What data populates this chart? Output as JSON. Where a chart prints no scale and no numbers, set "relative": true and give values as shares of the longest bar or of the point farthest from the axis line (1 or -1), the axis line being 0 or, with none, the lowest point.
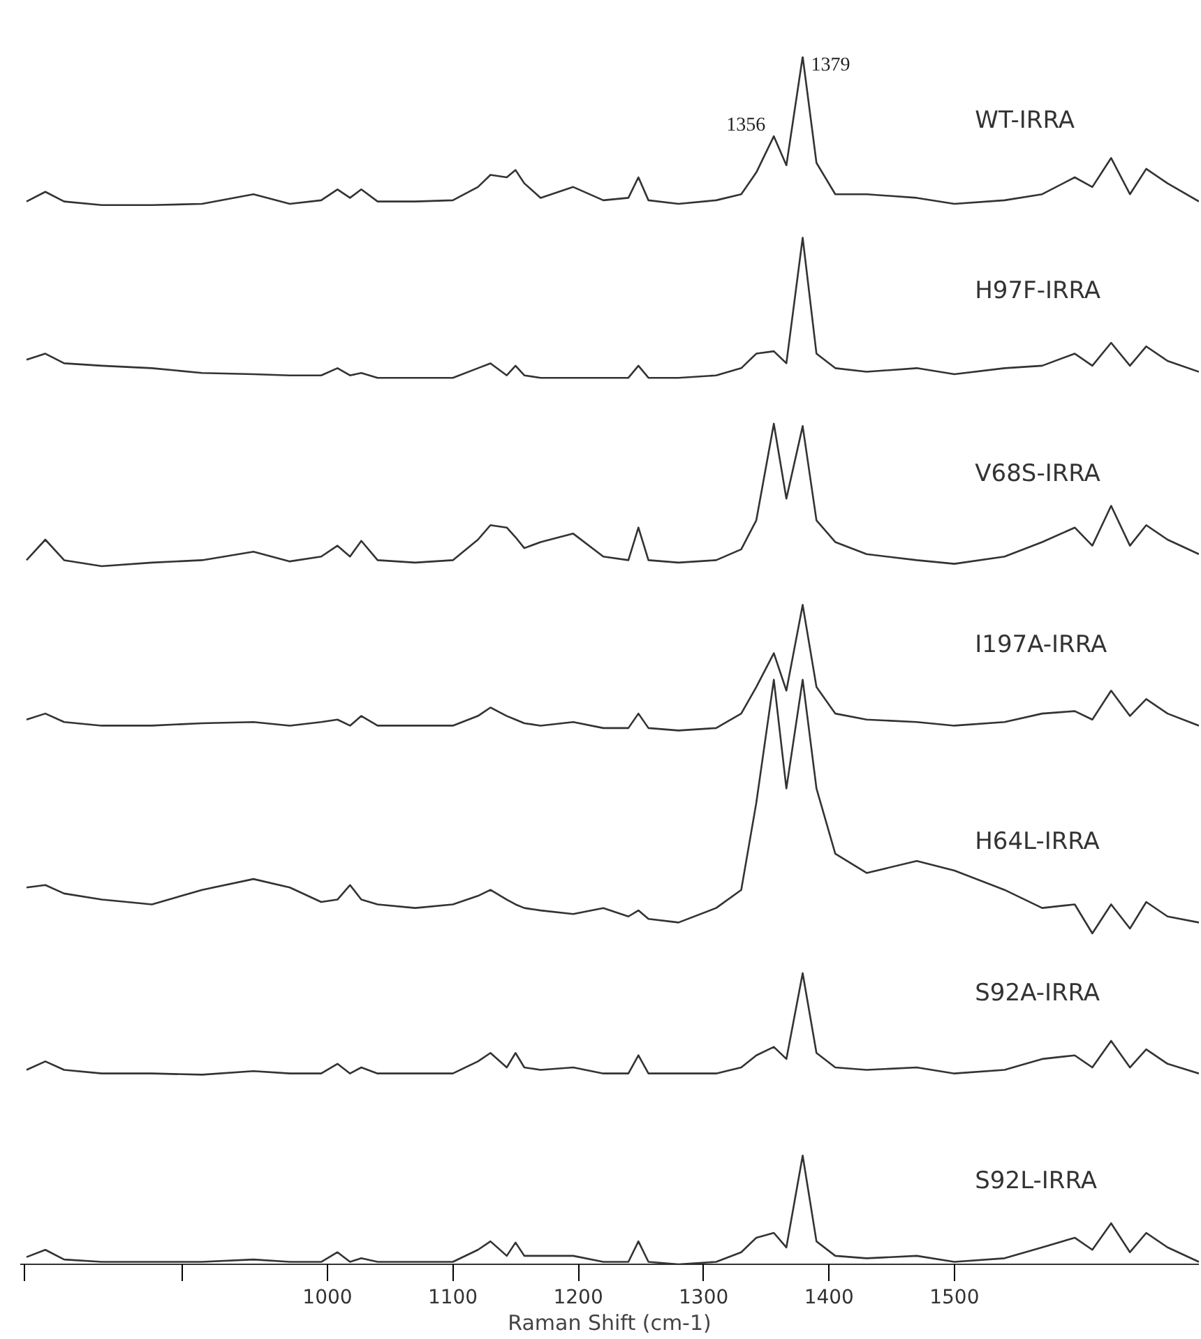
{
  "chart_data": {
    "type": "line",
    "relative": true,
    "xlabel": "Raman Shift (cm-1)",
    "xlim": [
      755,
      1695
    ],
    "xticks": [
      {
        "value": 758,
        "label": null
      },
      {
        "value": 884,
        "label": null
      },
      1000,
      1100,
      1200,
      1300,
      1400,
      1500
    ],
    "grid": false,
    "legend": false,
    "marker": "none",
    "line_style": "solid",
    "x": [
      760,
      775,
      790,
      820,
      860,
      900,
      941,
      970,
      995,
      1008,
      1018,
      1027,
      1040,
      1070,
      1100,
      1120,
      1130,
      1143,
      1150,
      1157,
      1170,
      1196,
      1220,
      1240,
      1248,
      1256,
      1280,
      1310,
      1330,
      1342,
      1356,
      1366,
      1379,
      1390,
      1405,
      1430,
      1470,
      1500,
      1540,
      1570,
      1596,
      1610,
      1625,
      1640,
      1653,
      1670,
      1695
    ],
    "series": [
      {
        "name": "WT-IRRA",
        "color": "#333333",
        "values": [
          0.88,
          0.888,
          0.88,
          0.877,
          0.877,
          0.878,
          0.886,
          0.878,
          0.881,
          0.89,
          0.883,
          0.89,
          0.88,
          0.88,
          0.881,
          0.892,
          0.902,
          0.9,
          0.906,
          0.895,
          0.883,
          0.892,
          0.881,
          0.883,
          0.9,
          0.881,
          0.878,
          0.881,
          0.886,
          0.904,
          0.934,
          0.91,
          1.0,
          0.912,
          0.886,
          0.886,
          0.883,
          0.878,
          0.881,
          0.886,
          0.9,
          0.892,
          0.916,
          0.886,
          0.907,
          0.895,
          0.88
        ]
      },
      {
        "name": "H97F-IRRA",
        "color": "#333333",
        "values": [
          0.749,
          0.754,
          0.746,
          0.744,
          0.742,
          0.738,
          0.737,
          0.736,
          0.736,
          0.742,
          0.736,
          0.738,
          0.734,
          0.734,
          0.734,
          0.742,
          0.746,
          0.736,
          0.744,
          0.736,
          0.734,
          0.734,
          0.734,
          0.734,
          0.744,
          0.734,
          0.734,
          0.736,
          0.742,
          0.754,
          0.756,
          0.746,
          0.85,
          0.754,
          0.742,
          0.739,
          0.742,
          0.737,
          0.742,
          0.744,
          0.754,
          0.744,
          0.763,
          0.744,
          0.76,
          0.748,
          0.739
        ]
      },
      {
        "name": "V68S-IRRA",
        "color": "#333333",
        "values": [
          0.583,
          0.6,
          0.583,
          0.578,
          0.581,
          0.583,
          0.59,
          0.582,
          0.586,
          0.595,
          0.586,
          0.599,
          0.583,
          0.581,
          0.583,
          0.6,
          0.612,
          0.61,
          0.602,
          0.593,
          0.598,
          0.605,
          0.586,
          0.583,
          0.61,
          0.583,
          0.581,
          0.583,
          0.592,
          0.616,
          0.696,
          0.634,
          0.694,
          0.616,
          0.598,
          0.588,
          0.583,
          0.58,
          0.586,
          0.598,
          0.61,
          0.595,
          0.628,
          0.595,
          0.612,
          0.6,
          0.588
        ]
      },
      {
        "name": "I197A-IRRA",
        "color": "#333333",
        "values": [
          0.451,
          0.456,
          0.449,
          0.446,
          0.446,
          0.448,
          0.449,
          0.446,
          0.449,
          0.451,
          0.446,
          0.454,
          0.446,
          0.446,
          0.446,
          0.454,
          0.461,
          0.454,
          0.451,
          0.448,
          0.446,
          0.449,
          0.444,
          0.444,
          0.456,
          0.444,
          0.442,
          0.444,
          0.456,
          0.478,
          0.506,
          0.475,
          0.546,
          0.478,
          0.456,
          0.451,
          0.449,
          0.446,
          0.449,
          0.456,
          0.458,
          0.451,
          0.475,
          0.454,
          0.468,
          0.456,
          0.446
        ]
      },
      {
        "name": "H64L-IRRA",
        "color": "#333333",
        "values": [
          0.312,
          0.314,
          0.307,
          0.302,
          0.298,
          0.31,
          0.319,
          0.312,
          0.3,
          0.302,
          0.314,
          0.302,
          0.298,
          0.295,
          0.298,
          0.305,
          0.31,
          0.302,
          0.298,
          0.295,
          0.293,
          0.29,
          0.295,
          0.288,
          0.293,
          0.286,
          0.283,
          0.295,
          0.31,
          0.382,
          0.484,
          0.394,
          0.484,
          0.394,
          0.34,
          0.324,
          0.334,
          0.326,
          0.31,
          0.295,
          0.298,
          0.274,
          0.298,
          0.278,
          0.3,
          0.288,
          0.283
        ]
      },
      {
        "name": "S92A-IRRA",
        "color": "#333333",
        "values": [
          0.161,
          0.168,
          0.161,
          0.158,
          0.158,
          0.157,
          0.16,
          0.158,
          0.158,
          0.166,
          0.158,
          0.163,
          0.158,
          0.158,
          0.158,
          0.168,
          0.175,
          0.163,
          0.175,
          0.163,
          0.161,
          0.163,
          0.158,
          0.158,
          0.173,
          0.158,
          0.158,
          0.158,
          0.163,
          0.173,
          0.18,
          0.17,
          0.241,
          0.175,
          0.163,
          0.161,
          0.163,
          0.158,
          0.161,
          0.17,
          0.173,
          0.163,
          0.185,
          0.163,
          0.178,
          0.166,
          0.158
        ]
      },
      {
        "name": "S92L-IRRA",
        "color": "#333333",
        "values": [
          0.006,
          0.012,
          0.004,
          0.002,
          0.002,
          0.002,
          0.004,
          0.002,
          0.002,
          0.01,
          0.002,
          0.005,
          0.002,
          0.002,
          0.002,
          0.012,
          0.019,
          0.007,
          0.018,
          0.007,
          0.007,
          0.007,
          0.002,
          0.002,
          0.019,
          0.002,
          0.0,
          0.002,
          0.01,
          0.022,
          0.026,
          0.014,
          0.09,
          0.019,
          0.007,
          0.005,
          0.007,
          0.002,
          0.005,
          0.014,
          0.022,
          0.012,
          0.034,
          0.01,
          0.026,
          0.014,
          0.002
        ]
      }
    ],
    "annotations": [
      {
        "text": "1356",
        "x": 1356,
        "y": 0.934
      },
      {
        "text": "1379",
        "x": 1379,
        "y": 1.0
      }
    ]
  }
}
